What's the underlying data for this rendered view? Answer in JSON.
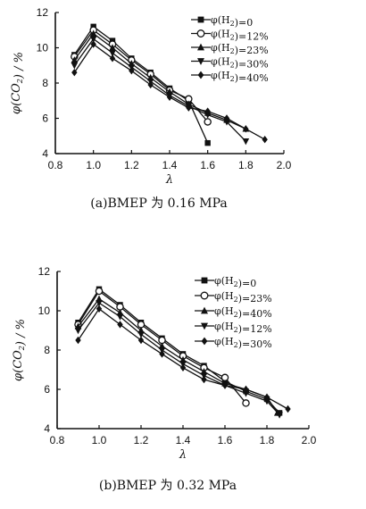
{
  "chart_data": [
    {
      "type": "line",
      "caption": "(a)BMEP 为 0.16 MPa",
      "xlabel": "λ",
      "ylabel": "φ(CO2) / %",
      "xlim": [
        0.8,
        2.0
      ],
      "ylim": [
        4,
        12
      ],
      "xticks": [
        "0.8",
        "1.0",
        "1.2",
        "1.4",
        "1.6",
        "1.8",
        "2.0"
      ],
      "yticks": [
        "4",
        "6",
        "8",
        "10",
        "12"
      ],
      "legend_position": "top-right",
      "series": [
        {
          "name": "φ(H2)=0",
          "marker": "square",
          "x": [
            0.9,
            1.0,
            1.1,
            1.2,
            1.3,
            1.4,
            1.5,
            1.6
          ],
          "y": [
            9.6,
            11.2,
            10.4,
            9.4,
            8.6,
            7.7,
            7.0,
            4.6
          ]
        },
        {
          "name": "φ(H2)=12%",
          "marker": "circle",
          "x": [
            0.9,
            1.0,
            1.1,
            1.2,
            1.3,
            1.4,
            1.5,
            1.6
          ],
          "y": [
            9.5,
            11.0,
            10.2,
            9.3,
            8.5,
            7.6,
            7.1,
            5.8
          ]
        },
        {
          "name": "φ(H2)=23%",
          "marker": "triangle-up",
          "x": [
            0.9,
            1.0,
            1.1,
            1.2,
            1.3,
            1.4,
            1.5,
            1.6,
            1.7,
            1.8
          ],
          "y": [
            9.3,
            10.8,
            10.0,
            9.1,
            8.3,
            7.5,
            6.8,
            6.3,
            5.9,
            5.4
          ]
        },
        {
          "name": "φ(H2)=30%",
          "marker": "triangle-down",
          "x": [
            0.9,
            1.0,
            1.1,
            1.2,
            1.3,
            1.4,
            1.5,
            1.6,
            1.7,
            1.8
          ],
          "y": [
            9.0,
            10.5,
            9.7,
            8.9,
            8.1,
            7.3,
            6.7,
            6.2,
            5.8,
            4.7
          ]
        },
        {
          "name": "φ(H2)=40%",
          "marker": "diamond",
          "x": [
            0.9,
            1.0,
            1.1,
            1.2,
            1.3,
            1.4,
            1.5,
            1.6,
            1.7,
            1.8,
            1.9
          ],
          "y": [
            8.6,
            10.2,
            9.4,
            8.7,
            7.9,
            7.2,
            6.6,
            6.4,
            6.0,
            5.4,
            4.8
          ]
        }
      ]
    },
    {
      "type": "line",
      "caption": "(b)BMEP 为 0.32 MPa",
      "xlabel": "λ",
      "ylabel": "φ(CO2) / %",
      "xlim": [
        0.8,
        2.0
      ],
      "ylim": [
        4,
        12
      ],
      "xticks": [
        "0.8",
        "1.0",
        "1.2",
        "1.4",
        "1.6",
        "1.8",
        "2.0"
      ],
      "yticks": [
        "4",
        "6",
        "8",
        "10",
        "12"
      ],
      "legend_position": "top-right",
      "series": [
        {
          "name": "φ(H2)=0",
          "marker": "square",
          "x": [
            0.9,
            1.0,
            1.1,
            1.2,
            1.3,
            1.4,
            1.5,
            1.6,
            1.7,
            1.8,
            1.86
          ],
          "y": [
            9.4,
            11.1,
            10.3,
            9.4,
            8.6,
            7.8,
            7.2,
            6.4,
            5.9,
            5.5,
            4.8
          ]
        },
        {
          "name": "φ(H2)=23%",
          "marker": "circle",
          "x": [
            0.9,
            1.0,
            1.1,
            1.2,
            1.3,
            1.4,
            1.5,
            1.6,
            1.7
          ],
          "y": [
            9.3,
            11.0,
            10.2,
            9.3,
            8.5,
            7.7,
            7.1,
            6.6,
            5.3
          ]
        },
        {
          "name": "φ(H2)=40%",
          "marker": "triangle-up",
          "x": [
            0.9,
            1.0,
            1.1,
            1.2,
            1.3,
            1.4,
            1.5,
            1.6,
            1.7,
            1.8,
            1.85
          ],
          "y": [
            9.2,
            10.6,
            9.9,
            9.0,
            8.2,
            7.5,
            6.9,
            6.3,
            6.0,
            5.6,
            4.8
          ]
        },
        {
          "name": "φ(H2)=12%",
          "marker": "triangle-down",
          "x": [
            0.9,
            1.0,
            1.1,
            1.2,
            1.3,
            1.4,
            1.5,
            1.6,
            1.7,
            1.8,
            1.86
          ],
          "y": [
            9.0,
            10.4,
            9.7,
            8.8,
            8.0,
            7.3,
            6.7,
            6.2,
            5.8,
            5.4,
            4.7
          ]
        },
        {
          "name": "φ(H2)=30%",
          "marker": "diamond",
          "x": [
            0.9,
            1.0,
            1.1,
            1.2,
            1.3,
            1.4,
            1.5,
            1.6,
            1.7,
            1.8,
            1.9
          ],
          "y": [
            8.5,
            10.1,
            9.3,
            8.5,
            7.8,
            7.1,
            6.5,
            6.2,
            6.0,
            5.6,
            5.0
          ]
        }
      ]
    }
  ]
}
